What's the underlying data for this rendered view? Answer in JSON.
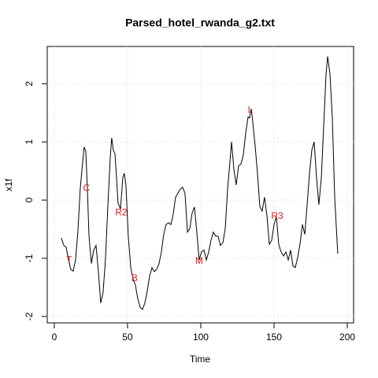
{
  "chart_data": {
    "type": "line",
    "title": "Parsed_hotel_rwanda_g2.txt",
    "x_label": "Time",
    "y_label": "x1f",
    "xlim": [
      -4.8,
      204.3
    ],
    "ylim": [
      -2.11,
      2.64
    ],
    "xticks": [
      0,
      50,
      100,
      150,
      200
    ],
    "yticks": [
      -2,
      -1,
      0,
      1,
      2
    ],
    "grid": true,
    "color": "#000000",
    "x": [
      4.8,
      6.5,
      8.1,
      9.7,
      11.3,
      12.9,
      14.5,
      16.1,
      17.7,
      19.4,
      20.4,
      21.5,
      22.6,
      23.7,
      25.3,
      26.9,
      28.5,
      30.1,
      31.7,
      33.3,
      34.9,
      36.6,
      38.2,
      39.2,
      40.3,
      41.4,
      42.5,
      43.5,
      45.2,
      46.8,
      47.8,
      48.9,
      50.5,
      52.2,
      53.8,
      55.4,
      57.0,
      58.6,
      60.2,
      61.8,
      63.4,
      65.1,
      66.7,
      68.3,
      69.9,
      71.5,
      73.1,
      74.7,
      76.3,
      78.0,
      79.6,
      81.2,
      82.8,
      84.4,
      86.0,
      87.6,
      89.2,
      90.9,
      92.5,
      94.1,
      95.7,
      97.3,
      98.9,
      100.5,
      102.2,
      103.8,
      105.4,
      107.0,
      108.6,
      110.2,
      111.8,
      113.4,
      115.1,
      116.7,
      118.3,
      119.9,
      121.0,
      122.6,
      124.2,
      125.8,
      127.4,
      129.0,
      130.6,
      132.3,
      133.3,
      134.4,
      135.5,
      137.1,
      138.7,
      140.3,
      141.9,
      143.5,
      145.2,
      146.8,
      148.4,
      150.0,
      151.6,
      153.2,
      154.8,
      156.5,
      158.1,
      159.7,
      161.3,
      162.9,
      164.5,
      166.1,
      167.7,
      169.4,
      171.0,
      172.6,
      174.2,
      175.8,
      177.4,
      179.0,
      180.6,
      182.3,
      183.9,
      185.5,
      186.6,
      188.2,
      189.8,
      191.4,
      193.5
    ],
    "values": [
      -0.65,
      -0.78,
      -0.81,
      -1.03,
      -1.19,
      -1.22,
      -1.03,
      -0.55,
      0.19,
      0.66,
      0.91,
      0.84,
      0.19,
      -0.62,
      -1.09,
      -0.86,
      -0.78,
      -1.23,
      -1.77,
      -1.59,
      -1.03,
      -0.08,
      0.73,
      1.07,
      0.86,
      0.8,
      0.39,
      -0.05,
      -0.15,
      0.39,
      0.46,
      0.26,
      -0.62,
      -1.16,
      -1.36,
      -1.46,
      -1.7,
      -1.84,
      -1.88,
      -1.77,
      -1.57,
      -1.3,
      -1.16,
      -1.23,
      -1.19,
      -1.09,
      -0.89,
      -0.59,
      -0.42,
      -0.39,
      -0.42,
      -0.24,
      0.05,
      0.12,
      0.19,
      0.22,
      0.12,
      -0.55,
      -0.49,
      -0.22,
      -0.12,
      -0.55,
      -1.03,
      -0.89,
      -0.86,
      -1.03,
      -0.89,
      -0.69,
      -0.55,
      -0.62,
      -0.62,
      -0.78,
      -0.73,
      -0.49,
      0.19,
      0.66,
      1.0,
      0.53,
      0.26,
      0.59,
      0.62,
      0.77,
      1.14,
      1.43,
      1.41,
      1.57,
      1.34,
      0.93,
      0.46,
      -0.11,
      -0.19,
      0.05,
      -0.28,
      -0.76,
      -0.69,
      -0.42,
      -0.28,
      -0.76,
      -0.89,
      -0.96,
      -0.89,
      -1.03,
      -0.86,
      -1.13,
      -1.16,
      -0.99,
      -0.76,
      -0.42,
      -0.59,
      -0.08,
      0.46,
      0.86,
      1.0,
      0.39,
      -0.08,
      0.39,
      1.28,
      2.16,
      2.47,
      2.16,
      1.41,
      0.05,
      -0.92
    ],
    "annotations": [
      {
        "text": "T",
        "x": 10.2,
        "y": -1.03,
        "color": "#e41a1c"
      },
      {
        "text": "C",
        "x": 22.0,
        "y": 0.2,
        "color": "#e41a1c"
      },
      {
        "text": "R2",
        "x": 45.7,
        "y": -0.22,
        "color": "#e41a1c"
      },
      {
        "text": "B",
        "x": 54.8,
        "y": -1.35,
        "color": "#e41a1c"
      },
      {
        "text": "M",
        "x": 98.9,
        "y": -1.05,
        "color": "#e41a1c"
      },
      {
        "text": "L",
        "x": 133.9,
        "y": 1.54,
        "color": "#e41a1c"
      },
      {
        "text": "R3",
        "x": 152.2,
        "y": -0.28,
        "color": "#e41a1c"
      }
    ]
  }
}
